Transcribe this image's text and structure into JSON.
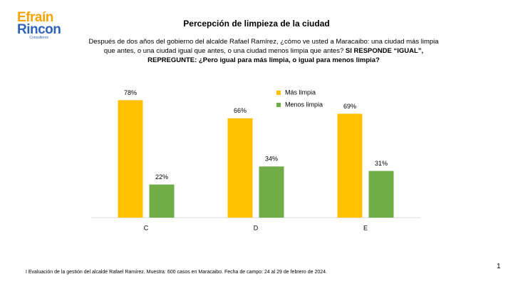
{
  "logo": {
    "line1": "Efraín",
    "line2": "Rincon",
    "tagline": "Consultores"
  },
  "chart_data": {
    "type": "bar",
    "title": "Percepción de limpieza de la ciudad",
    "subtitle": [
      "Después de dos años del gobierno del alcalde Rafael Ramírez, ¿cómo ve usted a Maracaibo: una ciudad más limpia",
      "que antes, o una ciudad igual que antes, o una ciudad menos limpia que antes?"
    ],
    "subtitle_bold": [
      "SI RESPONDE “IGUAL”,",
      "REPREGUNTE: ¿Pero igual para más limpia, o igual para menos limpia?"
    ],
    "categories": [
      "C",
      "D",
      "E"
    ],
    "series": [
      {
        "name": "Más limpia",
        "color": "#FFC000",
        "values": [
          78,
          66,
          69
        ],
        "value_labels": [
          "78%",
          "66%",
          "69%"
        ]
      },
      {
        "name": "Menos limpia",
        "color": "#70AD47",
        "values": [
          22,
          34,
          31
        ],
        "value_labels": [
          "22%",
          "34%",
          "31%"
        ]
      }
    ],
    "ylim": [
      0,
      100
    ],
    "legend": "top-right"
  },
  "footnote": "I Evaluación de la gestión del alcalde Rafael Ramírez. Muestra: 600 casos en Maracaibo. Fecha de campo: 24 al 29 de febrero de 2024.",
  "page_number": "1"
}
